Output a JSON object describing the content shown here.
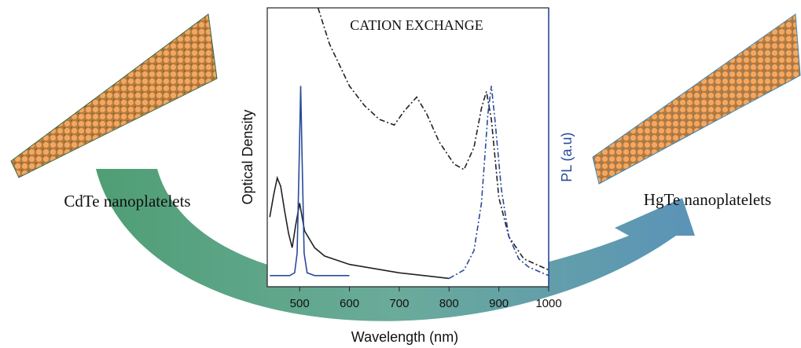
{
  "chart_data": {
    "type": "line",
    "title": "CATION EXCHANGE",
    "x_label": "Wavelength (nm)",
    "y_label": "Optical Density",
    "y2_label": "PL (a.u)",
    "annotations": [
      "CdTe nanoplatelets",
      "HgTe nanoplatelets"
    ],
    "xlim": [
      435,
      1000
    ],
    "xticks": [
      500,
      600,
      700,
      800,
      900,
      1000
    ],
    "ylim": [
      0,
      1
    ],
    "series": [
      {
        "color": "#222222",
        "dash": false,
        "x": [
          440,
          448,
          455,
          462,
          470,
          478,
          485,
          492,
          500,
          510,
          530,
          550,
          600,
          650,
          700,
          750,
          800
        ],
        "values": [
          0.25,
          0.33,
          0.39,
          0.36,
          0.27,
          0.19,
          0.14,
          0.22,
          0.3,
          0.2,
          0.14,
          0.11,
          0.08,
          0.065,
          0.05,
          0.04,
          0.03
        ]
      },
      {
        "color": "#2a4a9a",
        "dash": false,
        "x": [
          440,
          480,
          490,
          495,
          499,
          502,
          505,
          509,
          515,
          530,
          560,
          600
        ],
        "values": [
          0.04,
          0.04,
          0.05,
          0.12,
          0.45,
          0.72,
          0.45,
          0.12,
          0.05,
          0.04,
          0.04,
          0.04
        ]
      },
      {
        "color": "#222222",
        "dash": true,
        "x": [
          537,
          560,
          600,
          630,
          660,
          690,
          710,
          735,
          755,
          780,
          810,
          830,
          850,
          865,
          875,
          885,
          900,
          920,
          950,
          1000
        ],
        "values": [
          1.0,
          0.87,
          0.72,
          0.65,
          0.6,
          0.58,
          0.63,
          0.68,
          0.62,
          0.52,
          0.44,
          0.42,
          0.5,
          0.64,
          0.7,
          0.6,
          0.32,
          0.18,
          0.1,
          0.06
        ]
      },
      {
        "color": "#2a4a9a",
        "dash": true,
        "x": [
          800,
          830,
          850,
          865,
          878,
          885,
          892,
          905,
          920,
          940,
          960,
          1000
        ],
        "values": [
          0.03,
          0.06,
          0.13,
          0.3,
          0.62,
          0.72,
          0.6,
          0.35,
          0.18,
          0.1,
          0.07,
          0.04
        ]
      }
    ]
  }
}
